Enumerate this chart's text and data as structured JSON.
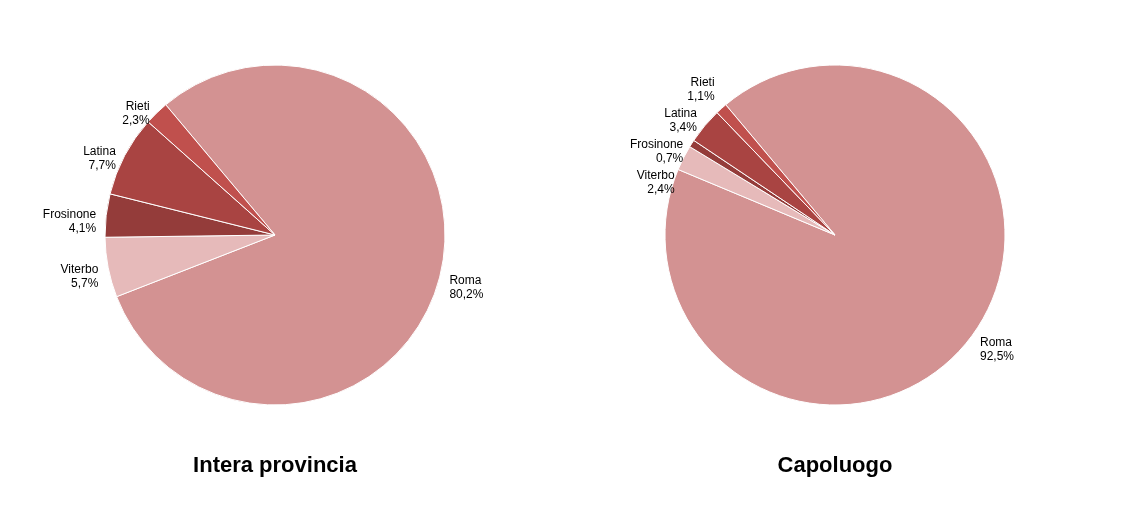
{
  "chart_data": [
    {
      "type": "pie",
      "title": "Intera provincia",
      "categories": [
        "Roma",
        "Viterbo",
        "Frosinone",
        "Latina",
        "Rieti"
      ],
      "values": [
        80.2,
        5.7,
        4.1,
        7.7,
        2.3
      ],
      "colors": [
        "#d39292",
        "#e6baba",
        "#943c3a",
        "#a94442",
        "#c0504d"
      ],
      "value_labels": [
        "80,2%",
        "5,7%",
        "4,1%",
        "7,7%",
        "2,3%"
      ]
    },
    {
      "type": "pie",
      "title": "Capoluogo",
      "categories": [
        "Roma",
        "Viterbo",
        "Frosinone",
        "Latina",
        "Rieti"
      ],
      "values": [
        92.5,
        2.4,
        0.7,
        3.4,
        1.1
      ],
      "colors": [
        "#d39292",
        "#e6baba",
        "#943c3a",
        "#a94442",
        "#c0504d"
      ],
      "value_labels": [
        "92,5%",
        "2,4%",
        "0,7%",
        "3,4%",
        "1,1%"
      ]
    }
  ]
}
